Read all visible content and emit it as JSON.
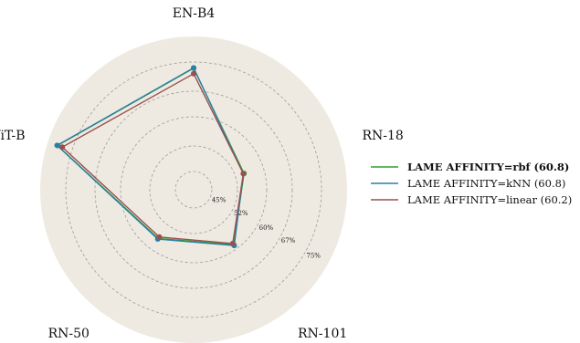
{
  "chart_data": {
    "type": "radar",
    "axes": [
      "EN-B4",
      "RN-18",
      "RN-101",
      "RN-50",
      "ViT-B"
    ],
    "rlim": [
      40,
      82
    ],
    "radial_ticks": [
      45,
      52,
      60,
      67,
      75
    ],
    "radial_tick_labels": [
      "45%",
      "52%",
      "60%",
      "67%",
      "75%"
    ],
    "grid": true,
    "legend_position": "right",
    "series": [
      {
        "name": "LAME AFFINITY=rbf (60.8)",
        "color": "#2ca02c",
        "bold": true,
        "values": [
          73.3,
          54.5,
          58.6,
          56.5,
          79.2
        ]
      },
      {
        "name": "LAME AFFINITY=kNN (60.8)",
        "color": "#2a7fa8",
        "bold": false,
        "values": [
          73.4,
          54.3,
          58.9,
          56.7,
          79.3
        ]
      },
      {
        "name": "LAME AFFINITY=linear (60.2)",
        "color": "#9a5050",
        "bold": false,
        "values": [
          71.8,
          54.3,
          58.2,
          56.0,
          77.8
        ]
      }
    ]
  }
}
